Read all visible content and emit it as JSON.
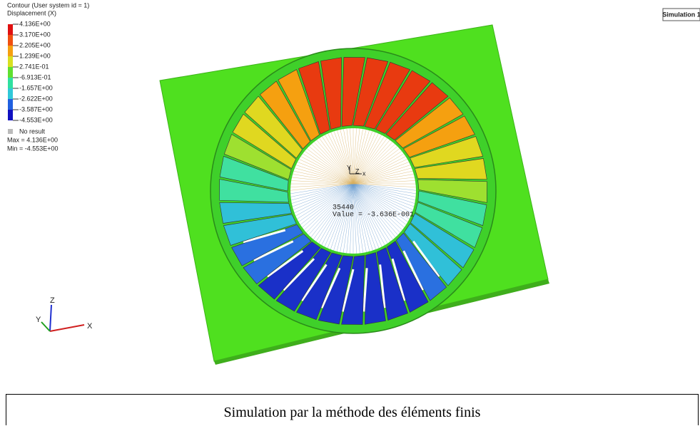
{
  "legend": {
    "title": "Contour (User system id = 1)",
    "subtitle": "Displacement (X)",
    "levels": [
      "4.136E+00",
      "3.170E+00",
      "2.205E+00",
      "1.239E+00",
      "2.741E-01",
      "-6.913E-01",
      "-1.657E+00",
      "-2.622E+00",
      "-3.587E+00",
      "-4.553E+00"
    ],
    "no_result": "No result",
    "max": "Max = 4.136E+00",
    "min": "Min = -4.553E+00"
  },
  "window_label": "Simulation 1",
  "probe": {
    "node": "35440",
    "value": "Value = -3.636E-001"
  },
  "triad": {
    "z": "Z",
    "y": "Y",
    "x": "X"
  },
  "center_triad": {
    "y": "Y",
    "z": "Z",
    "x": "x"
  },
  "caption": "Simulation par la méthode des éléments finis"
}
